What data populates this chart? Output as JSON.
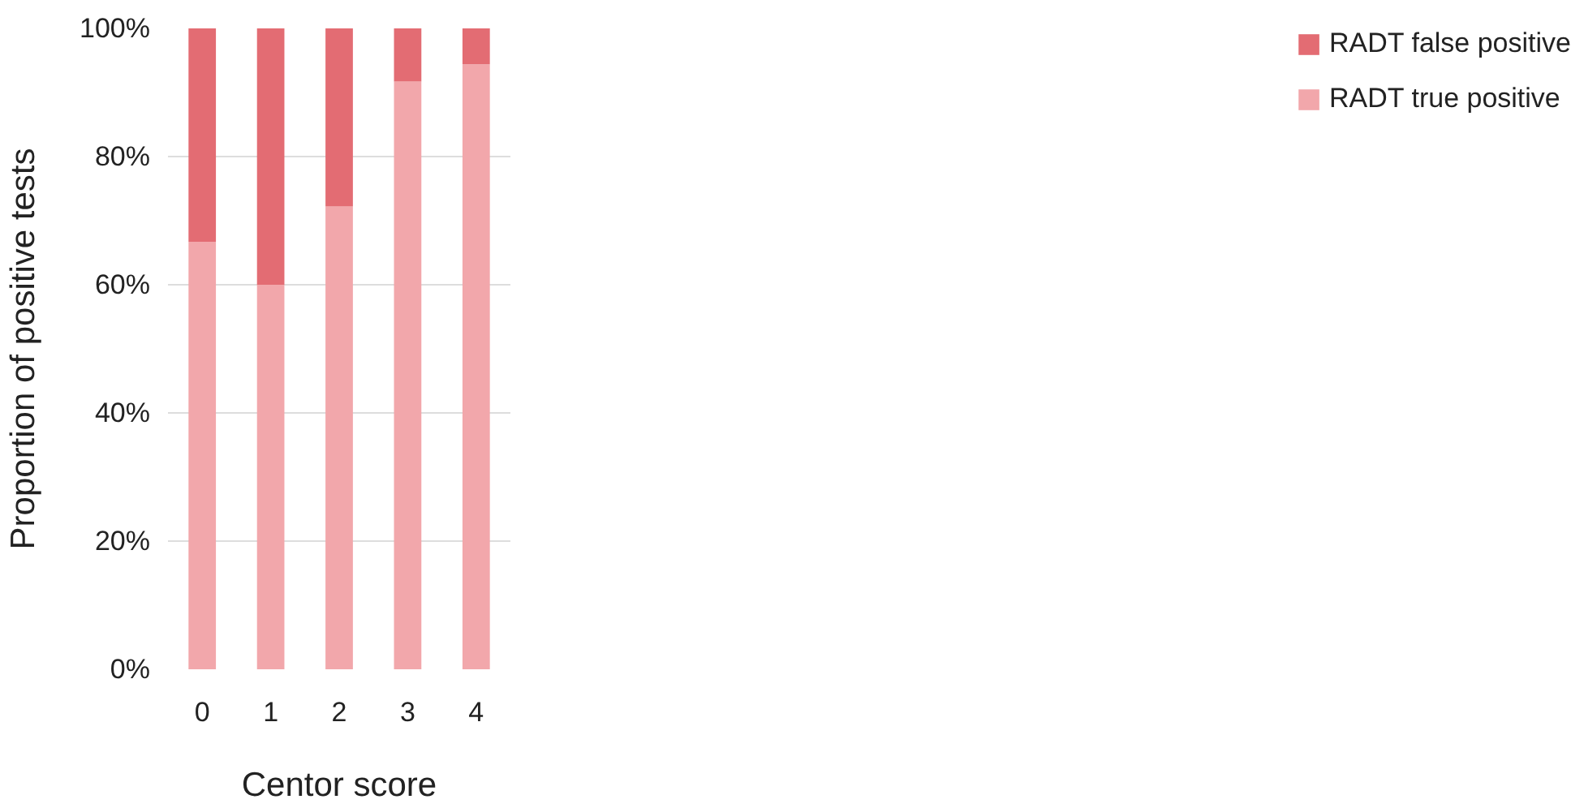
{
  "chart_data": {
    "type": "bar",
    "stacked": true,
    "xlabel": "Centor score",
    "ylabel": "Proportion of positive tests",
    "categories": [
      "0",
      "1",
      "2",
      "3",
      "4"
    ],
    "series": [
      {
        "name": "RADT true positive",
        "color": "#f2a7ab",
        "values": [
          66.7,
          60,
          72.2,
          91.7,
          94.4
        ]
      },
      {
        "name": "RADT false positive",
        "color": "#e36c73",
        "values": [
          33.3,
          40,
          27.8,
          8.3,
          5.6
        ]
      }
    ],
    "ylim": [
      0,
      100
    ],
    "yticks": [
      {
        "value": 0,
        "label": "0%"
      },
      {
        "value": 20,
        "label": "20%"
      },
      {
        "value": 40,
        "label": "40%"
      },
      {
        "value": 60,
        "label": "60%"
      },
      {
        "value": 80,
        "label": "80%"
      },
      {
        "value": 100,
        "label": "100%"
      }
    ],
    "grid": "y",
    "legend": "right"
  }
}
